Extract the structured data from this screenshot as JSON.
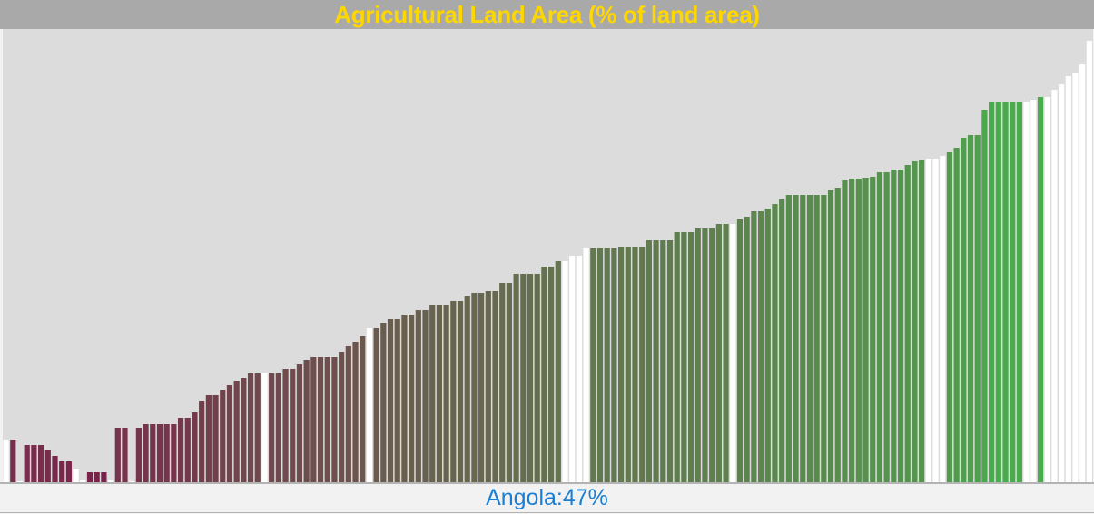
{
  "title": "Agricultural Land Area (% of land area)",
  "status": {
    "country": "Angola",
    "separator": ":",
    "value_text": "47%"
  },
  "colors": {
    "title": "#ffd700",
    "title_bar": "#a9a9a9",
    "plot_background": "#dcdcdc",
    "status_text": "#1a7fd4",
    "bar_low": "#7b1f4a",
    "bar_mid": "#637650",
    "bar_high": "#3ec44a",
    "bar_highlight": "#ffffff"
  },
  "chart_data": {
    "type": "bar",
    "title": "Agricultural Land Area (% of land area)",
    "xlabel": "",
    "ylabel": "",
    "ylim": [
      0,
      100
    ],
    "grid": false,
    "legend": "none",
    "color_scale": "value-based gradient (maroon → olive → green)",
    "highlighted_bars_color": "white",
    "values": [
      9.4,
      9.4,
      0.2,
      8.2,
      8.2,
      8.2,
      7.2,
      5.8,
      4.6,
      4.6,
      3.0,
      0.4,
      2.2,
      2.2,
      2.2,
      0.6,
      12.0,
      12.0,
      0.2,
      12.0,
      12.8,
      12.8,
      12.8,
      12.8,
      12.8,
      14.2,
      14.2,
      15.4,
      18.0,
      19.2,
      19.2,
      20.4,
      21.4,
      22.4,
      23.0,
      24.0,
      24.0,
      24.0,
      24.0,
      24.0,
      25.0,
      25.0,
      26.0,
      27.0,
      27.6,
      27.6,
      27.6,
      27.6,
      28.8,
      30.0,
      31.0,
      32.2,
      34.0,
      34.0,
      35.2,
      36.0,
      36.0,
      37.0,
      37.0,
      38.0,
      38.0,
      39.2,
      39.2,
      39.2,
      40.0,
      40.0,
      41.0,
      41.8,
      41.8,
      42.2,
      42.2,
      44.0,
      44.0,
      46.0,
      46.0,
      46.0,
      46.0,
      47.6,
      47.6,
      48.8,
      48.8,
      50.0,
      50.0,
      51.6,
      51.6,
      51.6,
      51.6,
      51.6,
      52.0,
      52.0,
      52.0,
      52.0,
      53.4,
      53.4,
      53.4,
      53.4,
      55.2,
      55.2,
      55.2,
      56.0,
      56.0,
      56.0,
      57.0,
      57.0,
      57.0,
      58.0,
      58.6,
      59.8,
      59.8,
      60.4,
      61.4,
      62.4,
      63.4,
      63.4,
      63.4,
      63.4,
      63.4,
      63.4,
      64.4,
      65.0,
      66.6,
      67.0,
      67.0,
      67.2,
      67.4,
      68.4,
      68.4,
      69.0,
      69.0,
      70.0,
      70.8,
      71.2,
      71.4,
      71.4,
      72.0,
      72.8,
      73.8,
      76.0,
      76.6,
      76.6,
      82.2,
      84.0,
      84.0,
      84.0,
      84.0,
      84.0,
      84.0,
      84.4,
      85.0,
      85.0,
      86.6,
      87.8,
      89.6,
      90.4,
      92.2,
      97.4
    ],
    "highlighted_indices": [
      0,
      2,
      10,
      11,
      15,
      18,
      37,
      52,
      80,
      81,
      82,
      83,
      104,
      132,
      133,
      134,
      146,
      147,
      149,
      150,
      151,
      152,
      153,
      154,
      155
    ]
  }
}
